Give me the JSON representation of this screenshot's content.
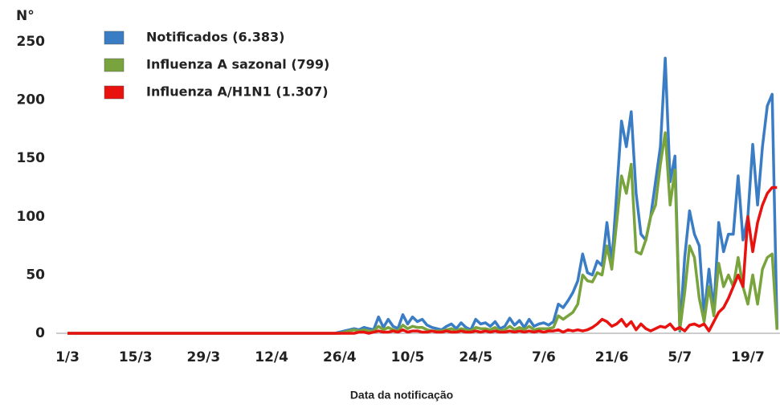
{
  "chart_data": {
    "type": "line",
    "y_label": "N°",
    "x_label": "Data da notificação",
    "categories": [
      "1/3",
      null,
      null,
      null,
      null,
      null,
      null,
      null,
      null,
      null,
      null,
      null,
      null,
      null,
      "15/3",
      null,
      null,
      null,
      null,
      null,
      null,
      null,
      null,
      null,
      null,
      null,
      null,
      null,
      "29/3",
      null,
      null,
      null,
      null,
      null,
      null,
      null,
      null,
      null,
      null,
      null,
      null,
      null,
      "12/4",
      null,
      null,
      null,
      null,
      null,
      null,
      null,
      null,
      null,
      null,
      null,
      null,
      null,
      "26/4",
      null,
      null,
      null,
      null,
      null,
      null,
      null,
      null,
      null,
      null,
      null,
      null,
      null,
      "10/5",
      null,
      null,
      null,
      null,
      null,
      null,
      null,
      null,
      null,
      null,
      null,
      null,
      null,
      "24/5",
      null,
      null,
      null,
      null,
      null,
      null,
      null,
      null,
      null,
      null,
      null,
      null,
      null,
      "7/6",
      null,
      null,
      null,
      null,
      null,
      null,
      null,
      null,
      null,
      null,
      null,
      null,
      null,
      "21/6",
      null,
      null,
      null,
      null,
      null,
      null,
      null,
      null,
      null,
      null,
      null,
      null,
      null,
      "5/7",
      null,
      null,
      null,
      null,
      null,
      null,
      null,
      null,
      null,
      null,
      null,
      null,
      null,
      "19/7",
      null,
      null,
      null,
      null,
      null,
      null
    ],
    "ylim": [
      0,
      250
    ],
    "yticks": [
      0,
      50,
      100,
      150,
      200,
      250
    ],
    "legend": "top-left",
    "series": [
      {
        "name": "Notificados (6.383)",
        "color": "#3b7dc4",
        "values": [
          0,
          0,
          0,
          0,
          0,
          0,
          0,
          0,
          0,
          0,
          0,
          0,
          0,
          0,
          0,
          0,
          0,
          0,
          0,
          0,
          0,
          0,
          0,
          0,
          0,
          0,
          0,
          0,
          0,
          0,
          0,
          0,
          0,
          0,
          0,
          0,
          0,
          0,
          0,
          0,
          0,
          0,
          0,
          0,
          0,
          0,
          0,
          0,
          0,
          0,
          0,
          0,
          0,
          0,
          0,
          0,
          1,
          2,
          3,
          4,
          3,
          5,
          4,
          3,
          14,
          5,
          12,
          6,
          4,
          16,
          8,
          14,
          10,
          12,
          7,
          5,
          4,
          3,
          6,
          8,
          4,
          9,
          5,
          3,
          12,
          8,
          9,
          6,
          10,
          4,
          6,
          13,
          7,
          11,
          5,
          12,
          6,
          8,
          9,
          7,
          10,
          25,
          22,
          28,
          35,
          45,
          68,
          52,
          50,
          62,
          58,
          95,
          60,
          120,
          182,
          160,
          190,
          120,
          85,
          80,
          100,
          130,
          160,
          236,
          130,
          152,
          2,
          65,
          105,
          85,
          75,
          15,
          55,
          20,
          95,
          70,
          85,
          85,
          135,
          80,
          100,
          162,
          110,
          160,
          195,
          205,
          5
        ]
      },
      {
        "name": "Influenza A sazonal (799)",
        "color": "#78a33d",
        "values": [
          0,
          0,
          0,
          0,
          0,
          0,
          0,
          0,
          0,
          0,
          0,
          0,
          0,
          0,
          0,
          0,
          0,
          0,
          0,
          0,
          0,
          0,
          0,
          0,
          0,
          0,
          0,
          0,
          0,
          0,
          0,
          0,
          0,
          0,
          0,
          0,
          0,
          0,
          0,
          0,
          0,
          0,
          0,
          0,
          0,
          0,
          0,
          0,
          0,
          0,
          0,
          0,
          0,
          0,
          0,
          0,
          0,
          1,
          2,
          3,
          2,
          3,
          2,
          2,
          6,
          3,
          5,
          3,
          2,
          7,
          4,
          6,
          5,
          5,
          3,
          2,
          2,
          2,
          3,
          4,
          2,
          4,
          3,
          2,
          5,
          4,
          4,
          3,
          5,
          2,
          3,
          6,
          3,
          5,
          3,
          6,
          3,
          4,
          4,
          4,
          5,
          15,
          12,
          15,
          18,
          25,
          50,
          45,
          44,
          52,
          50,
          75,
          55,
          95,
          135,
          120,
          145,
          70,
          68,
          80,
          100,
          110,
          145,
          172,
          110,
          140,
          3,
          35,
          75,
          65,
          30,
          10,
          40,
          15,
          60,
          40,
          50,
          40,
          65,
          40,
          25,
          50,
          25,
          55,
          65,
          68,
          3
        ]
      },
      {
        "name": "Influenza A/H1N1 (1.307)",
        "color": "#e8120f",
        "values": [
          0,
          0,
          0,
          0,
          0,
          0,
          0,
          0,
          0,
          0,
          0,
          0,
          0,
          0,
          0,
          0,
          0,
          0,
          0,
          0,
          0,
          0,
          0,
          0,
          0,
          0,
          0,
          0,
          0,
          0,
          0,
          0,
          0,
          0,
          0,
          0,
          0,
          0,
          0,
          0,
          0,
          0,
          0,
          0,
          0,
          0,
          0,
          0,
          0,
          0,
          0,
          0,
          0,
          0,
          0,
          0,
          0,
          0,
          0,
          0,
          1,
          1,
          0,
          1,
          2,
          1,
          1,
          2,
          1,
          3,
          1,
          2,
          2,
          1,
          1,
          2,
          1,
          1,
          2,
          1,
          1,
          2,
          1,
          1,
          2,
          1,
          2,
          1,
          2,
          1,
          1,
          2,
          1,
          2,
          1,
          2,
          1,
          2,
          1,
          2,
          2,
          3,
          1,
          3,
          2,
          3,
          2,
          3,
          5,
          8,
          12,
          10,
          6,
          8,
          12,
          6,
          10,
          3,
          8,
          4,
          2,
          4,
          6,
          5,
          8,
          3,
          5,
          2,
          7,
          8,
          6,
          8,
          2,
          10,
          18,
          22,
          30,
          40,
          50,
          40,
          100,
          70,
          95,
          110,
          120,
          125,
          125
        ]
      }
    ]
  }
}
